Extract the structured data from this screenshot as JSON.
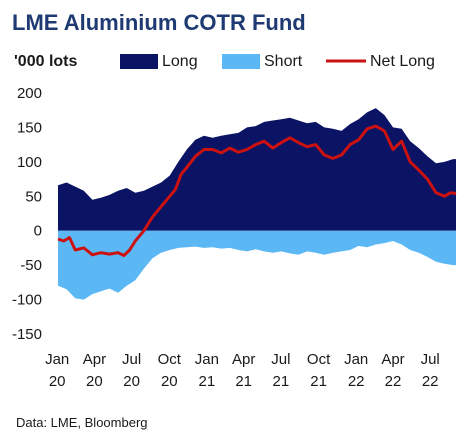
{
  "chart_data": {
    "type": "area",
    "title": "LME Aluminium COTR Fund",
    "unit_label": "'000 lots",
    "source": "Data: LME, Bloomberg",
    "ylim": [
      -150,
      200
    ],
    "yticks": [
      "200",
      "150",
      "100",
      "50",
      "0",
      "-50",
      "-100",
      "-150"
    ],
    "ytick_values": [
      200,
      150,
      100,
      50,
      0,
      -50,
      -100,
      -150
    ],
    "xticks": [
      {
        "month": "Jan",
        "year": "20"
      },
      {
        "month": "Apr",
        "year": "20"
      },
      {
        "month": "Jul",
        "year": "20"
      },
      {
        "month": "Oct",
        "year": "20"
      },
      {
        "month": "Jan",
        "year": "21"
      },
      {
        "month": "Apr",
        "year": "21"
      },
      {
        "month": "Jul",
        "year": "21"
      },
      {
        "month": "Oct",
        "year": "21"
      },
      {
        "month": "Jan",
        "year": "22"
      },
      {
        "month": "Apr",
        "year": "22"
      },
      {
        "month": "Jul",
        "year": "22"
      }
    ],
    "x_start": "2020-01-03",
    "x_end": "2022-09-02",
    "legend_position": "top",
    "grid": false,
    "series": [
      {
        "name": "Long",
        "kind": "area",
        "color": "#0b1364",
        "values": [
          [
            "2020-01-03",
            66
          ],
          [
            "2020-01-24",
            70
          ],
          [
            "2020-02-14",
            64
          ],
          [
            "2020-03-06",
            58
          ],
          [
            "2020-03-27",
            45
          ],
          [
            "2020-04-17",
            48
          ],
          [
            "2020-05-08",
            52
          ],
          [
            "2020-05-29",
            58
          ],
          [
            "2020-06-19",
            62
          ],
          [
            "2020-07-10",
            55
          ],
          [
            "2020-07-31",
            58
          ],
          [
            "2020-08-21",
            64
          ],
          [
            "2020-09-11",
            70
          ],
          [
            "2020-10-02",
            80
          ],
          [
            "2020-10-23",
            100
          ],
          [
            "2020-11-13",
            118
          ],
          [
            "2020-12-04",
            132
          ],
          [
            "2020-12-25",
            138
          ],
          [
            "2021-01-15",
            135
          ],
          [
            "2021-02-05",
            138
          ],
          [
            "2021-02-26",
            140
          ],
          [
            "2021-03-19",
            142
          ],
          [
            "2021-04-09",
            150
          ],
          [
            "2021-04-30",
            152
          ],
          [
            "2021-05-21",
            158
          ],
          [
            "2021-06-11",
            160
          ],
          [
            "2021-07-02",
            162
          ],
          [
            "2021-07-23",
            164
          ],
          [
            "2021-08-13",
            160
          ],
          [
            "2021-09-03",
            156
          ],
          [
            "2021-09-24",
            158
          ],
          [
            "2021-10-15",
            150
          ],
          [
            "2021-11-05",
            148
          ],
          [
            "2021-11-26",
            145
          ],
          [
            "2021-12-17",
            155
          ],
          [
            "2022-01-07",
            162
          ],
          [
            "2022-01-28",
            172
          ],
          [
            "2022-02-18",
            178
          ],
          [
            "2022-03-11",
            168
          ],
          [
            "2022-04-01",
            150
          ],
          [
            "2022-04-22",
            148
          ],
          [
            "2022-05-13",
            130
          ],
          [
            "2022-06-03",
            120
          ],
          [
            "2022-06-24",
            108
          ],
          [
            "2022-07-15",
            98
          ],
          [
            "2022-08-05",
            100
          ],
          [
            "2022-08-26",
            104
          ],
          [
            "2022-09-02",
            104
          ]
        ]
      },
      {
        "name": "Short",
        "kind": "area",
        "color": "#5bb8f5",
        "values": [
          [
            "2020-01-03",
            -80
          ],
          [
            "2020-01-24",
            -85
          ],
          [
            "2020-02-14",
            -98
          ],
          [
            "2020-03-06",
            -100
          ],
          [
            "2020-03-27",
            -92
          ],
          [
            "2020-04-17",
            -88
          ],
          [
            "2020-05-08",
            -84
          ],
          [
            "2020-05-29",
            -90
          ],
          [
            "2020-06-19",
            -80
          ],
          [
            "2020-07-10",
            -72
          ],
          [
            "2020-07-31",
            -55
          ],
          [
            "2020-08-21",
            -40
          ],
          [
            "2020-09-11",
            -32
          ],
          [
            "2020-10-02",
            -28
          ],
          [
            "2020-10-23",
            -25
          ],
          [
            "2020-11-13",
            -24
          ],
          [
            "2020-12-04",
            -23
          ],
          [
            "2020-12-25",
            -25
          ],
          [
            "2021-01-15",
            -24
          ],
          [
            "2021-02-05",
            -26
          ],
          [
            "2021-02-26",
            -25
          ],
          [
            "2021-03-19",
            -28
          ],
          [
            "2021-04-09",
            -30
          ],
          [
            "2021-04-30",
            -27
          ],
          [
            "2021-05-21",
            -30
          ],
          [
            "2021-06-11",
            -32
          ],
          [
            "2021-07-02",
            -30
          ],
          [
            "2021-07-23",
            -33
          ],
          [
            "2021-08-13",
            -35
          ],
          [
            "2021-09-03",
            -30
          ],
          [
            "2021-09-24",
            -32
          ],
          [
            "2021-10-15",
            -35
          ],
          [
            "2021-11-05",
            -32
          ],
          [
            "2021-11-26",
            -30
          ],
          [
            "2021-12-17",
            -28
          ],
          [
            "2022-01-07",
            -22
          ],
          [
            "2022-01-28",
            -24
          ],
          [
            "2022-02-18",
            -20
          ],
          [
            "2022-03-11",
            -18
          ],
          [
            "2022-04-01",
            -15
          ],
          [
            "2022-04-22",
            -20
          ],
          [
            "2022-05-13",
            -28
          ],
          [
            "2022-06-03",
            -32
          ],
          [
            "2022-06-24",
            -38
          ],
          [
            "2022-07-15",
            -45
          ],
          [
            "2022-08-05",
            -48
          ],
          [
            "2022-08-26",
            -50
          ],
          [
            "2022-09-02",
            -50
          ]
        ]
      },
      {
        "name": "Net Long",
        "kind": "line",
        "color": "#cc1111",
        "values": [
          [
            "2020-01-03",
            -12
          ],
          [
            "2020-01-17",
            -15
          ],
          [
            "2020-01-31",
            -10
          ],
          [
            "2020-02-14",
            -28
          ],
          [
            "2020-03-06",
            -25
          ],
          [
            "2020-03-27",
            -35
          ],
          [
            "2020-04-17",
            -32
          ],
          [
            "2020-05-08",
            -34
          ],
          [
            "2020-05-29",
            -32
          ],
          [
            "2020-06-12",
            -36
          ],
          [
            "2020-06-26",
            -28
          ],
          [
            "2020-07-10",
            -15
          ],
          [
            "2020-07-31",
            0
          ],
          [
            "2020-08-21",
            20
          ],
          [
            "2020-09-11",
            35
          ],
          [
            "2020-10-02",
            50
          ],
          [
            "2020-10-16",
            60
          ],
          [
            "2020-10-30",
            82
          ],
          [
            "2020-11-13",
            92
          ],
          [
            "2020-12-04",
            108
          ],
          [
            "2020-12-25",
            118
          ],
          [
            "2021-01-15",
            118
          ],
          [
            "2021-02-05",
            113
          ],
          [
            "2021-02-26",
            120
          ],
          [
            "2021-03-19",
            114
          ],
          [
            "2021-04-09",
            118
          ],
          [
            "2021-04-30",
            125
          ],
          [
            "2021-05-21",
            130
          ],
          [
            "2021-06-11",
            120
          ],
          [
            "2021-07-02",
            128
          ],
          [
            "2021-07-23",
            135
          ],
          [
            "2021-08-13",
            128
          ],
          [
            "2021-09-03",
            122
          ],
          [
            "2021-09-24",
            125
          ],
          [
            "2021-10-15",
            110
          ],
          [
            "2021-11-05",
            105
          ],
          [
            "2021-11-26",
            110
          ],
          [
            "2021-12-17",
            125
          ],
          [
            "2022-01-07",
            132
          ],
          [
            "2022-01-28",
            148
          ],
          [
            "2022-02-18",
            152
          ],
          [
            "2022-03-11",
            145
          ],
          [
            "2022-04-01",
            118
          ],
          [
            "2022-04-22",
            130
          ],
          [
            "2022-05-13",
            100
          ],
          [
            "2022-06-03",
            88
          ],
          [
            "2022-06-24",
            75
          ],
          [
            "2022-07-15",
            55
          ],
          [
            "2022-08-05",
            50
          ],
          [
            "2022-08-19",
            55
          ],
          [
            "2022-09-02",
            54
          ]
        ]
      }
    ]
  }
}
